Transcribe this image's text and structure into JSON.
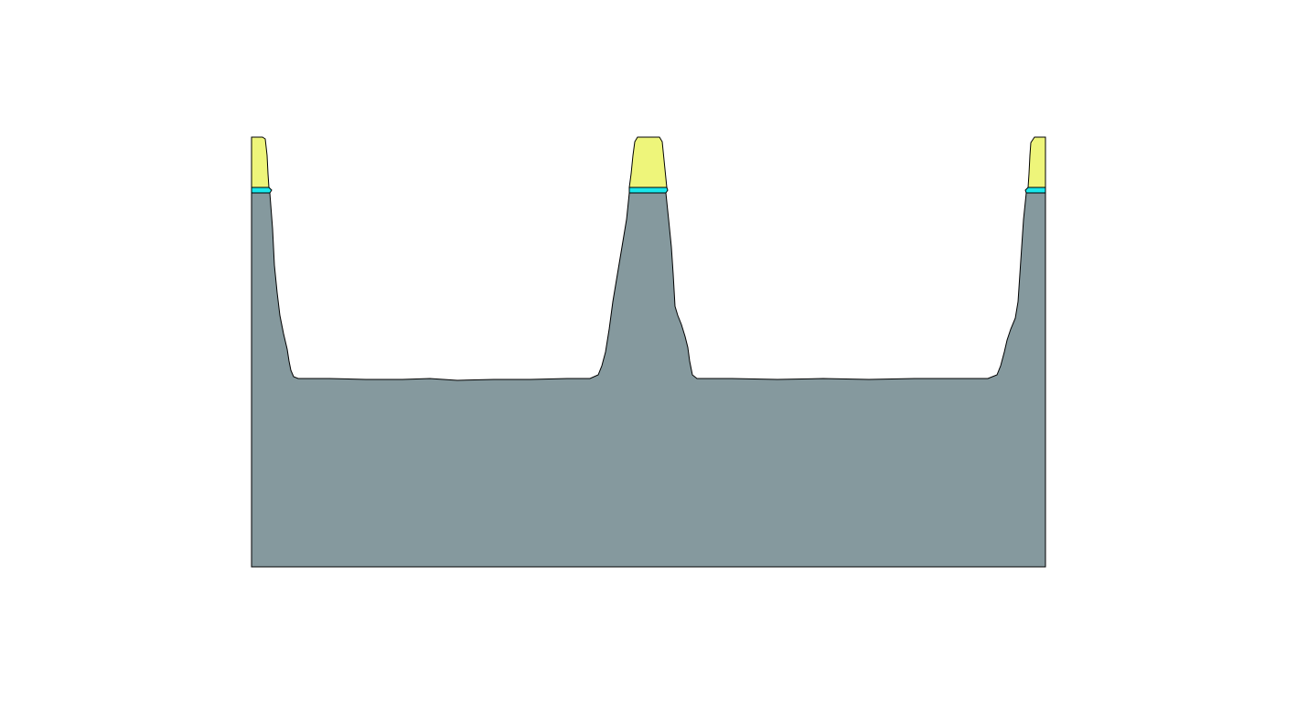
{
  "diagram": {
    "type": "etch-profile-cross-section",
    "materials": [
      {
        "name": "substrate",
        "color": "#85999E"
      },
      {
        "name": "interlayer",
        "color": "#18E8EC"
      },
      {
        "name": "mask",
        "color": "#EEF57A"
      }
    ],
    "features": [
      {
        "kind": "half-pillar",
        "position": "left"
      },
      {
        "kind": "pillar",
        "position": "center"
      },
      {
        "kind": "half-pillar",
        "position": "right"
      }
    ],
    "trenches": 2,
    "outline_color": "#000000",
    "background": "#FFFFFF"
  }
}
